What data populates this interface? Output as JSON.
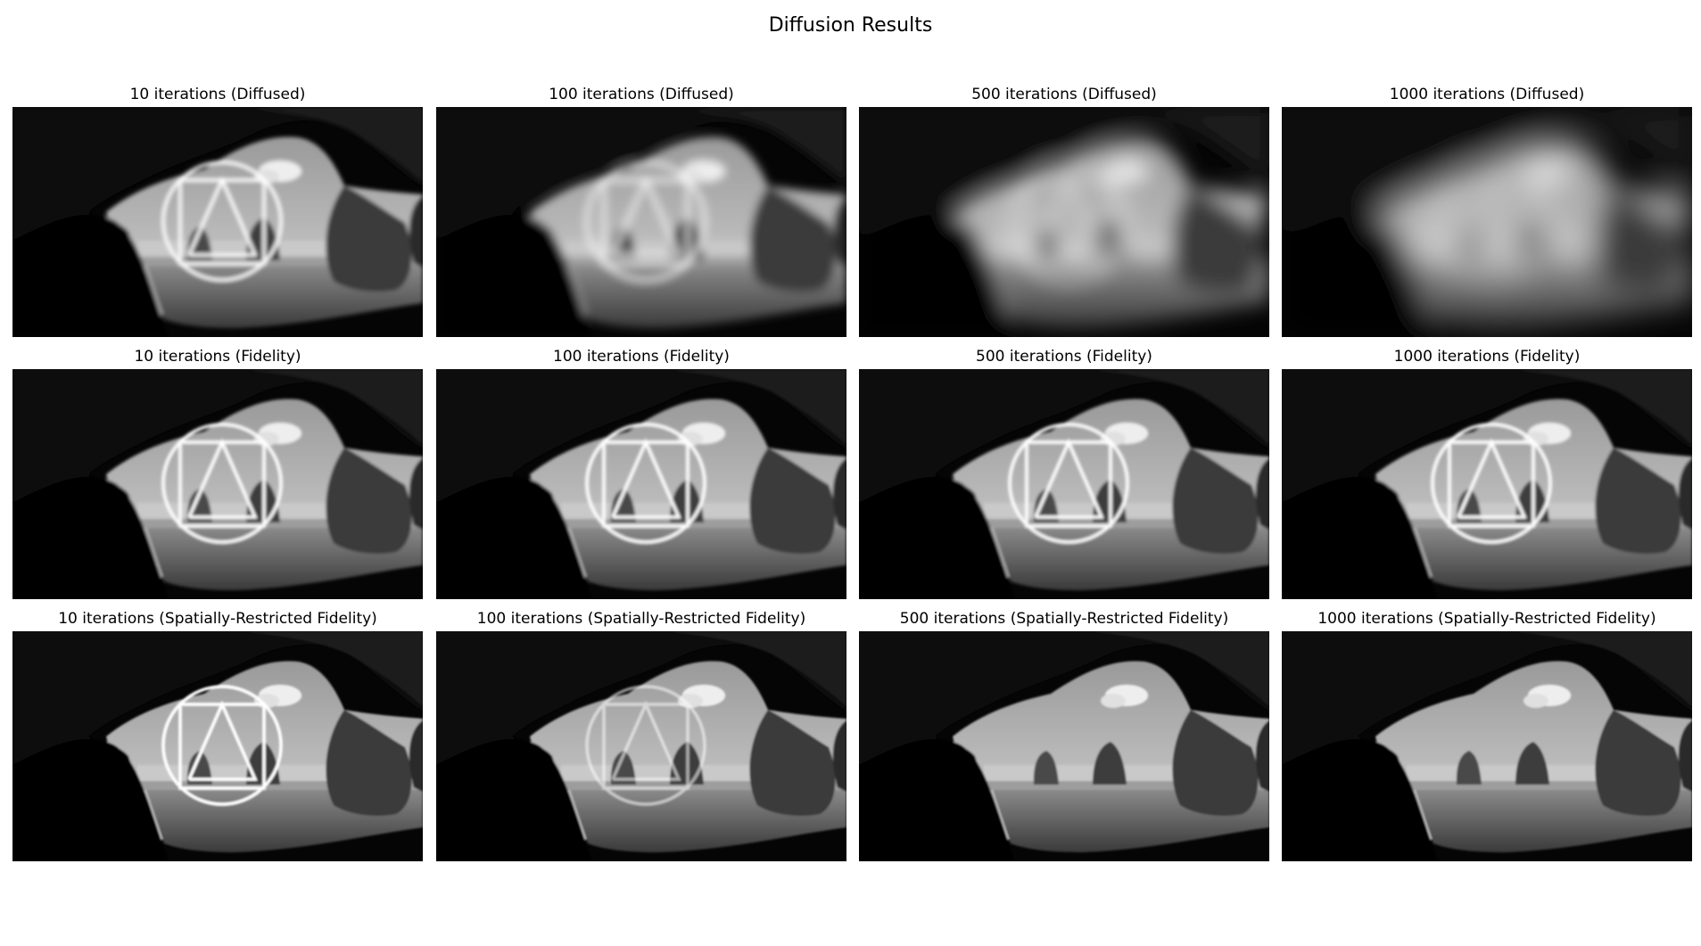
{
  "figure": {
    "title": "Diffusion Results"
  },
  "rows": [
    {
      "panels": [
        {
          "title": "10 iterations (Diffused)",
          "blur": 2.5,
          "overlay_opacity": 1.0
        },
        {
          "title": "100 iterations (Diffused)",
          "blur": 5,
          "overlay_opacity": 0.95
        },
        {
          "title": "500 iterations (Diffused)",
          "blur": 11,
          "overlay_opacity": 0.8
        },
        {
          "title": "1000 iterations (Diffused)",
          "blur": 16,
          "overlay_opacity": 0.7
        }
      ]
    },
    {
      "panels": [
        {
          "title": "10 iterations (Fidelity)",
          "blur": 1.5,
          "overlay_opacity": 1.0
        },
        {
          "title": "100 iterations (Fidelity)",
          "blur": 1.5,
          "overlay_opacity": 1.0
        },
        {
          "title": "500 iterations (Fidelity)",
          "blur": 1.5,
          "overlay_opacity": 1.0
        },
        {
          "title": "1000 iterations (Fidelity)",
          "blur": 1.5,
          "overlay_opacity": 1.0
        }
      ]
    },
    {
      "panels": [
        {
          "title": "10 iterations (Spatially-Restricted Fidelity)",
          "blur": 1,
          "overlay_opacity": 1.0
        },
        {
          "title": "100 iterations (Spatially-Restricted Fidelity)",
          "blur": 1,
          "overlay_opacity": 0.55
        },
        {
          "title": "500 iterations (Spatially-Restricted Fidelity)",
          "blur": 1,
          "overlay_opacity": 0
        },
        {
          "title": "1000 iterations (Spatially-Restricted Fidelity)",
          "blur": 1,
          "overlay_opacity": 0
        }
      ]
    }
  ]
}
